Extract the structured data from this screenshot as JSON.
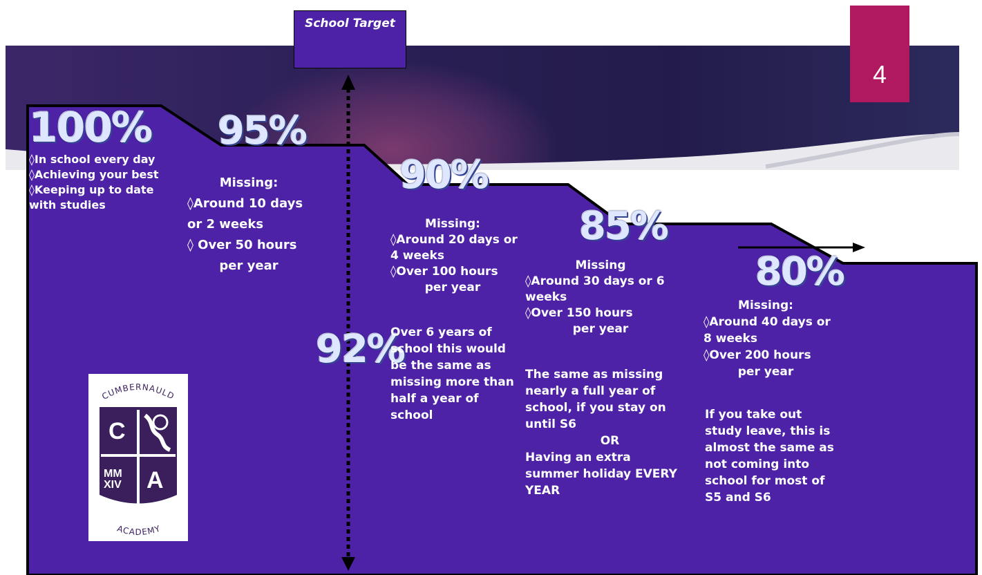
{
  "slide_number": "4",
  "target": {
    "label": "School Target",
    "percent": "92%"
  },
  "levels": [
    {
      "percent": "100%",
      "lines": [
        "◊In school every day",
        "◊Achieving your best",
        "◊Keeping up to date",
        "with studies"
      ]
    },
    {
      "percent": "95%",
      "lines": [
        "Missing:",
        "◊Around 10 days",
        "or 2 weeks",
        "◊ Over 50 hours",
        "per year"
      ]
    },
    {
      "percent": "90%",
      "lines": [
        "Missing:",
        "◊Around 20 days or",
        "4 weeks",
        "◊Over 100 hours",
        "per year"
      ],
      "extra": [
        "Over 6 years of",
        "school this would",
        "be the same as",
        "missing more than",
        "half a year of",
        "school"
      ]
    },
    {
      "percent": "85%",
      "lines": [
        "Missing",
        "◊Around 30 days or 6",
        "weeks",
        "◊Over 150 hours",
        "per year"
      ],
      "extra": [
        "The same as missing",
        "nearly a full year of",
        "school, if you stay on",
        "until S6",
        "OR",
        "Having an extra",
        "summer holiday EVERY",
        "YEAR"
      ]
    },
    {
      "percent": "80%",
      "lines": [
        "Missing:",
        "◊Around 40 days or",
        "8 weeks",
        "◊Over 200 hours",
        "per year"
      ],
      "extra": [
        "If you take out",
        "study leave, this is",
        "almost the same as",
        "not coming into",
        "school for most of",
        "S5 and S6"
      ]
    }
  ],
  "logo": {
    "top_text": "CUMBERNAULD",
    "bottom_text": "ACADEMY",
    "letters": [
      "C",
      "A"
    ],
    "numerals": [
      "MM",
      "XIV"
    ]
  },
  "colors": {
    "panel": "#4e22a6",
    "slide_number_bg": "#b0195f",
    "band": "#2a1f55",
    "outline": "#000000"
  }
}
